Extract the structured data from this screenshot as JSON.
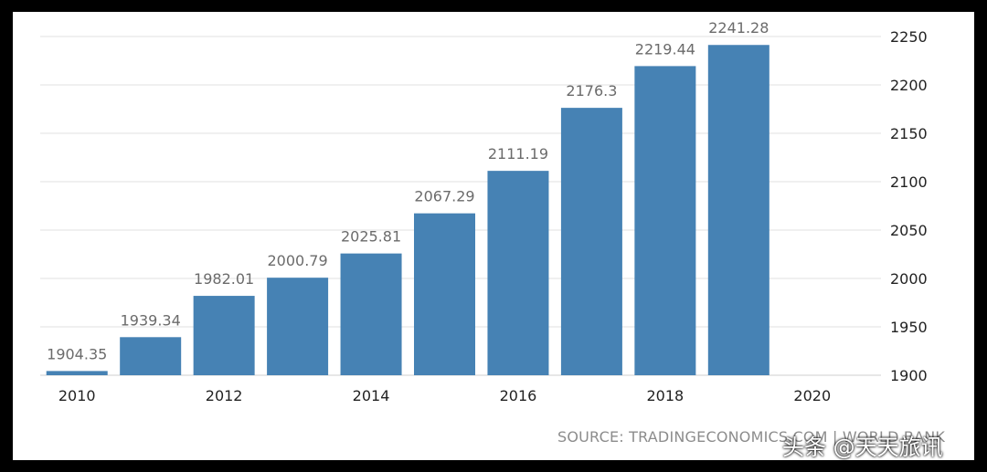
{
  "chart_data": {
    "type": "bar",
    "categories": [
      "2010",
      "2011",
      "2012",
      "2013",
      "2014",
      "2015",
      "2016",
      "2017",
      "2018",
      "2019"
    ],
    "values": [
      1904.35,
      1939.34,
      1982.01,
      2000.79,
      2025.81,
      2067.29,
      2111.19,
      2176.3,
      2219.44,
      2241.28
    ],
    "value_labels": [
      "1904.35",
      "1939.34",
      "1982.01",
      "2000.79",
      "2025.81",
      "2067.29",
      "2111.19",
      "2176.3",
      "2219.44",
      "2241.28"
    ],
    "x_ticks": [
      "2010",
      "2012",
      "2014",
      "2016",
      "2018",
      "2020"
    ],
    "y_ticks": [
      "1900",
      "1950",
      "2000",
      "2050",
      "2100",
      "2150",
      "2200",
      "2250"
    ],
    "ylim": [
      1900,
      2250
    ],
    "grid": true,
    "y_axis_side": "right",
    "bar_color": "#4682b4",
    "source": "SOURCE: TRADINGECONOMICS.COM | WORLD BANK"
  },
  "watermark": "头条 @天天旅讯"
}
